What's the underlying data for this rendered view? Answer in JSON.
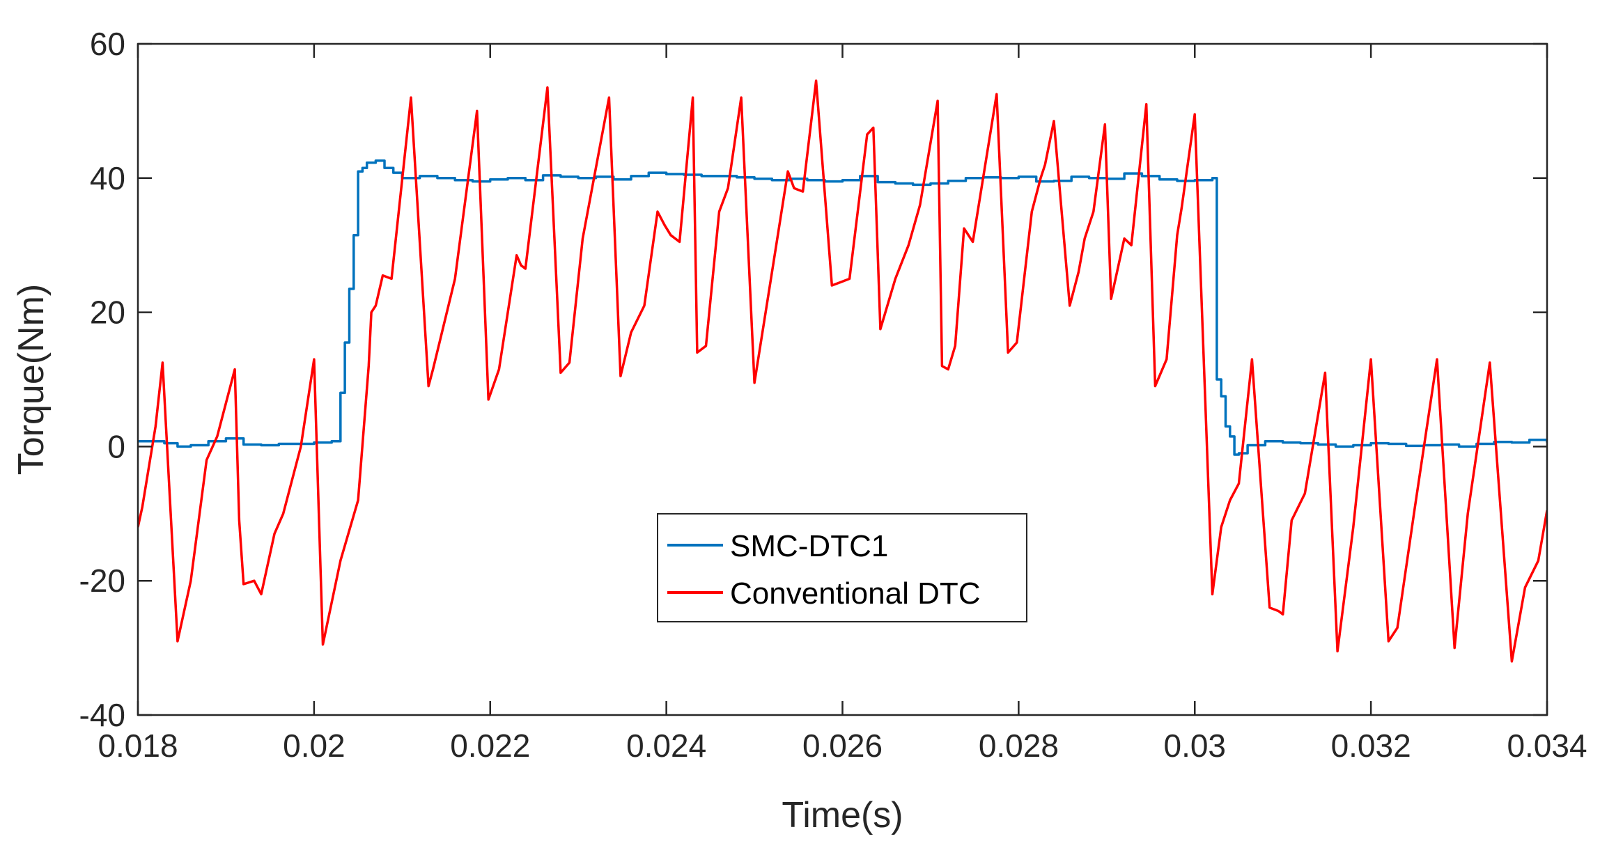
{
  "chart_data": {
    "type": "line",
    "title": "",
    "xlabel": "Time(s)",
    "ylabel": "Torque(Nm)",
    "xlim": [
      0.018,
      0.034
    ],
    "ylim": [
      -40,
      60
    ],
    "xticks": [
      0.018,
      0.02,
      0.022,
      0.024,
      0.026,
      0.028,
      0.03,
      0.032,
      0.034
    ],
    "xtick_labels": [
      "0.018",
      "0.02",
      "0.022",
      "0.024",
      "0.026",
      "0.028",
      "0.03",
      "0.032",
      "0.034"
    ],
    "yticks": [
      -40,
      -20,
      0,
      20,
      40,
      60
    ],
    "ytick_labels": [
      "-40",
      "-20",
      "0",
      "20",
      "40",
      "60"
    ],
    "grid": false,
    "legend_position": "center",
    "series": [
      {
        "name": "SMC-DTC1",
        "color": "#0072BD",
        "step": true,
        "x": [
          0.018,
          0.0183,
          0.01845,
          0.0186,
          0.0188,
          0.019,
          0.0192,
          0.0194,
          0.0196,
          0.0198,
          0.02,
          0.0202,
          0.0203,
          0.02035,
          0.0204,
          0.02045,
          0.0205,
          0.02055,
          0.0206,
          0.0207,
          0.0208,
          0.0209,
          0.021,
          0.0212,
          0.0214,
          0.0216,
          0.0218,
          0.022,
          0.0222,
          0.0224,
          0.0226,
          0.0228,
          0.023,
          0.0232,
          0.0234,
          0.0236,
          0.0238,
          0.024,
          0.0242,
          0.0244,
          0.0246,
          0.0248,
          0.025,
          0.0252,
          0.0254,
          0.0256,
          0.0258,
          0.026,
          0.0262,
          0.0264,
          0.0266,
          0.0268,
          0.027,
          0.0272,
          0.0274,
          0.0276,
          0.0278,
          0.028,
          0.0282,
          0.0284,
          0.0286,
          0.0288,
          0.029,
          0.0292,
          0.0294,
          0.0296,
          0.0298,
          0.03,
          0.0302,
          0.03025,
          0.0303,
          0.03035,
          0.0304,
          0.03045,
          0.0305,
          0.0306,
          0.0308,
          0.031,
          0.0312,
          0.0314,
          0.0316,
          0.0318,
          0.032,
          0.0322,
          0.0324,
          0.0326,
          0.0328,
          0.033,
          0.0332,
          0.0334,
          0.0336,
          0.0338,
          0.034
        ],
        "y": [
          0.8,
          0.5,
          0.0,
          0.2,
          0.8,
          1.2,
          0.3,
          0.2,
          0.4,
          0.4,
          0.6,
          0.8,
          8.0,
          15.5,
          23.5,
          31.5,
          41.0,
          41.5,
          42.3,
          42.6,
          41.5,
          40.8,
          40.0,
          40.3,
          40.0,
          39.7,
          39.5,
          39.8,
          40.0,
          39.7,
          40.4,
          40.2,
          40.0,
          40.2,
          39.8,
          40.3,
          40.8,
          40.6,
          40.5,
          40.3,
          40.3,
          40.1,
          39.9,
          39.7,
          39.9,
          39.7,
          39.5,
          39.7,
          40.3,
          39.4,
          39.2,
          39.0,
          39.2,
          39.6,
          40.0,
          40.1,
          40.0,
          40.2,
          39.5,
          39.6,
          40.2,
          40.0,
          39.9,
          40.7,
          40.3,
          39.8,
          39.6,
          39.7,
          40.0,
          10.0,
          7.5,
          3.0,
          1.5,
          -1.2,
          -1.0,
          0.2,
          0.8,
          0.6,
          0.5,
          0.3,
          0.0,
          0.2,
          0.5,
          0.4,
          0.1,
          0.2,
          0.3,
          0.0,
          0.4,
          0.7,
          0.6,
          1.0,
          0.6
        ]
      },
      {
        "name": "Conventional DTC",
        "color": "#FF0000",
        "step": false,
        "x": [
          0.018,
          0.01805,
          0.0182,
          0.01828,
          0.01845,
          0.0186,
          0.01878,
          0.0189,
          0.0191,
          0.01915,
          0.0192,
          0.01932,
          0.0194,
          0.01955,
          0.01965,
          0.01985,
          0.02,
          0.0201,
          0.0203,
          0.0205,
          0.02062,
          0.02065,
          0.0207,
          0.02078,
          0.02088,
          0.0211,
          0.0213,
          0.02135,
          0.0216,
          0.02185,
          0.02198,
          0.0221,
          0.0223,
          0.02235,
          0.0224,
          0.02265,
          0.0228,
          0.0229,
          0.02305,
          0.02335,
          0.02348,
          0.0236,
          0.02375,
          0.0239,
          0.02398,
          0.02405,
          0.02415,
          0.0243,
          0.02435,
          0.02445,
          0.0246,
          0.0247,
          0.02485,
          0.025,
          0.0252,
          0.02538,
          0.02545,
          0.02555,
          0.0257,
          0.02588,
          0.02598,
          0.02608,
          0.02628,
          0.02635,
          0.02643,
          0.0266,
          0.02675,
          0.02688,
          0.02708,
          0.02713,
          0.0272,
          0.02728,
          0.02738,
          0.02748,
          0.02775,
          0.02788,
          0.02798,
          0.02815,
          0.02825,
          0.0283,
          0.0284,
          0.02858,
          0.02868,
          0.02875,
          0.02885,
          0.02898,
          0.02905,
          0.0291,
          0.0292,
          0.02928,
          0.02945,
          0.02955,
          0.02968,
          0.0298,
          0.02985,
          0.03,
          0.0302,
          0.0303,
          0.0304,
          0.0305,
          0.03065,
          0.03085,
          0.03095,
          0.031,
          0.0311,
          0.03125,
          0.03148,
          0.03162,
          0.0318,
          0.032,
          0.0322,
          0.0323,
          0.0325,
          0.03275,
          0.03295,
          0.0331,
          0.03335,
          0.0336,
          0.03375,
          0.0339,
          0.034
        ],
        "y": [
          -12.0,
          -9.0,
          3.0,
          12.5,
          -29.0,
          -20.0,
          -2.0,
          1.5,
          11.5,
          -11.0,
          -20.5,
          -20.0,
          -22.0,
          -13.0,
          -10.0,
          0.0,
          13.0,
          -29.5,
          -17.0,
          -8.0,
          12.0,
          20.0,
          21.0,
          25.5,
          25.0,
          52.0,
          9.0,
          11.5,
          25.0,
          50.0,
          7.0,
          11.5,
          28.5,
          27.0,
          26.5,
          53.5,
          11.0,
          12.5,
          31.0,
          52.0,
          10.5,
          17.0,
          21.0,
          35.0,
          33.0,
          31.5,
          30.5,
          52.0,
          14.0,
          15.0,
          35.0,
          38.5,
          52.0,
          9.5,
          26.0,
          41.0,
          38.5,
          38.0,
          54.5,
          24.0,
          24.5,
          25.0,
          46.5,
          47.5,
          17.5,
          25.0,
          30.0,
          36.0,
          51.5,
          12.0,
          11.5,
          15.0,
          32.5,
          30.5,
          52.5,
          14.0,
          15.5,
          35.0,
          40.0,
          42.0,
          48.5,
          21.0,
          26.0,
          31.0,
          35.0,
          48.0,
          22.0,
          25.0,
          31.0,
          30.0,
          51.0,
          9.0,
          13.0,
          31.5,
          35.5,
          49.5,
          -22.0,
          -12.0,
          -8.0,
          -5.5,
          13.0,
          -24.0,
          -24.5,
          -25.0,
          -11.0,
          -7.0,
          11.0,
          -30.5,
          -12.0,
          13.0,
          -29.0,
          -27.0,
          -9.0,
          13.0,
          -30.0,
          -10.0,
          12.5,
          -32.0,
          -21.0,
          -17.0,
          -9.5
        ]
      }
    ]
  }
}
